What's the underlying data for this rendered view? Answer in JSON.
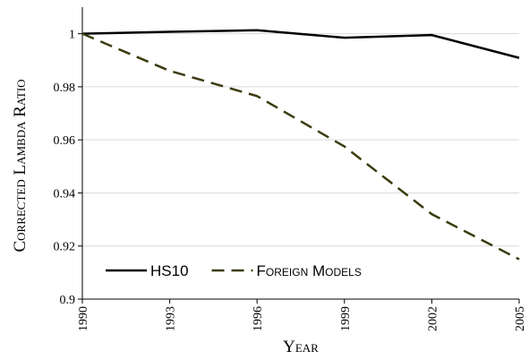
{
  "chart_data": {
    "type": "line",
    "x_label": "Year",
    "y_label": "Corrected Lambda Ratio",
    "x": [
      1990,
      1993,
      1996,
      1999,
      2002,
      2005
    ],
    "series": [
      {
        "name": "HS10",
        "color": "#000000",
        "dash": "solid",
        "values": [
          1.0,
          1.0007,
          1.0013,
          0.9985,
          0.9995,
          0.9909
        ]
      },
      {
        "name": "Foreign Models",
        "color": "#3b3b0e",
        "dash": "dashed",
        "values": [
          1.0,
          0.986,
          0.9765,
          0.9575,
          0.932,
          0.915
        ]
      }
    ],
    "xlim": [
      1990,
      2005
    ],
    "xticks": [
      1990,
      1993,
      1996,
      1999,
      2002,
      2005
    ],
    "ylim": [
      0.9,
      1.01
    ],
    "yticks": [
      0.9,
      0.92,
      0.94,
      0.96,
      0.98,
      1
    ],
    "grid": true,
    "legend": "bottom-left"
  }
}
